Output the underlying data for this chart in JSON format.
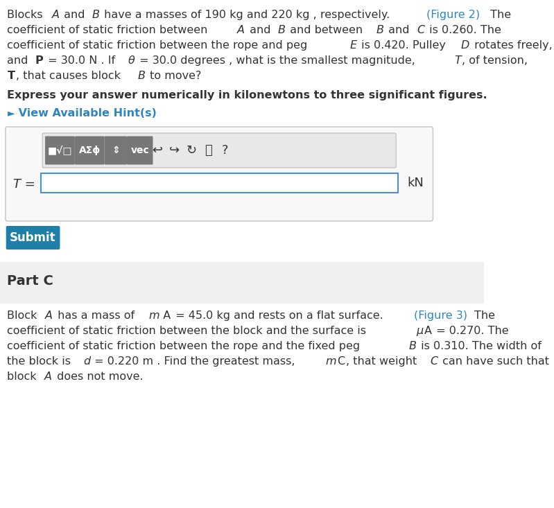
{
  "bg_color": "#ffffff",
  "page_bg": "#ffffff",
  "part_c_bg": "#f0f0f0",
  "text_color": "#333333",
  "link_color": "#2e86c1",
  "hint_color": "#2e86c1",
  "submit_bg": "#1f7fa6",
  "submit_text": "#ffffff",
  "toolbar_bg": "#888888",
  "input_border": "#4a90d9",
  "para1_line1": "Blocks ",
  "para1_A": "A",
  "para1_and": " and ",
  "para1_B": "B",
  "para1_rest1": " have a masses of 190 kg and 220 kg , respectively.",
  "para1_link": "(Figure 2)",
  "para1_rest2": " The",
  "para1_line2": "coefficient of static friction between ",
  "para1_line2_A": "A",
  "para1_line2_and": " and ",
  "para1_line2_B": "B",
  "para1_line2_rest": " and between ",
  "para1_line2_B2": "B",
  "para1_line2_andC": " and ",
  "para1_line2_C": "C",
  "para1_line2_val": " is 0.260. The",
  "para1_line3": "coefficient of static friction between the rope and peg ",
  "para1_line3_E": "E",
  "para1_line3_rest": " is 0.420. Pulley ",
  "para1_line3_D": "D",
  "para1_line3_end": " rotates freely,",
  "para1_line4a": "and ",
  "para1_line4b": "P",
  "para1_line4c": " = 30.0 N . If ",
  "para1_line4d": "θ",
  "para1_line4e": " = 30.0 degrees , what is the smallest magnitude, ",
  "para1_line4f": "T",
  "para1_line4g": ", of tension,",
  "para1_line5a": "T",
  "para1_line5b": ", that causes block ",
  "para1_line5c": "B",
  "para1_line5d": " to move?",
  "bold_line": "Express your answer numerically in kilonewtons to three significant figures.",
  "hint_arrow": "►",
  "hint_text": " View Available Hint(s)",
  "toolbar_icons": [
    "■√□",
    "AΣϕ",
    "⇕",
    "vec"
  ],
  "toolbar_icons2": [
    "↩",
    "↪",
    "↻",
    "⌸",
    "?"
  ],
  "input_label": "T =",
  "input_unit": "kN",
  "submit_label": "Submit",
  "partc_label": "Part C",
  "partc_line1a": "Block ",
  "partc_line1b": "A",
  "partc_line1c": " has a mass of ",
  "partc_line1d": "m",
  "partc_line1e": "A",
  "partc_line1f": " = 45.0 kg and rests on a flat surface. ",
  "partc_line1g": "(Figure 3)",
  "partc_line1h": "The",
  "partc_line2": "coefficient of static friction between the block and the surface is ",
  "partc_line2b": "μA",
  "partc_line2c": " = 0.270. The",
  "partc_line3": "coefficient of static friction between the rope and the fixed peg ",
  "partc_line3b": "B",
  "partc_line3c": " is 0.310. The width of",
  "partc_line4a": "the block is ",
  "partc_line4b": "d",
  "partc_line4c": " = 0.220 m . Find the greatest mass, ",
  "partc_line4d": "mc",
  "partc_line4e": ", that weight ",
  "partc_line4f": "C",
  "partc_line4g": " can have such that",
  "partc_line5": "block ",
  "partc_line5b": "A",
  "partc_line5c": " does not move."
}
